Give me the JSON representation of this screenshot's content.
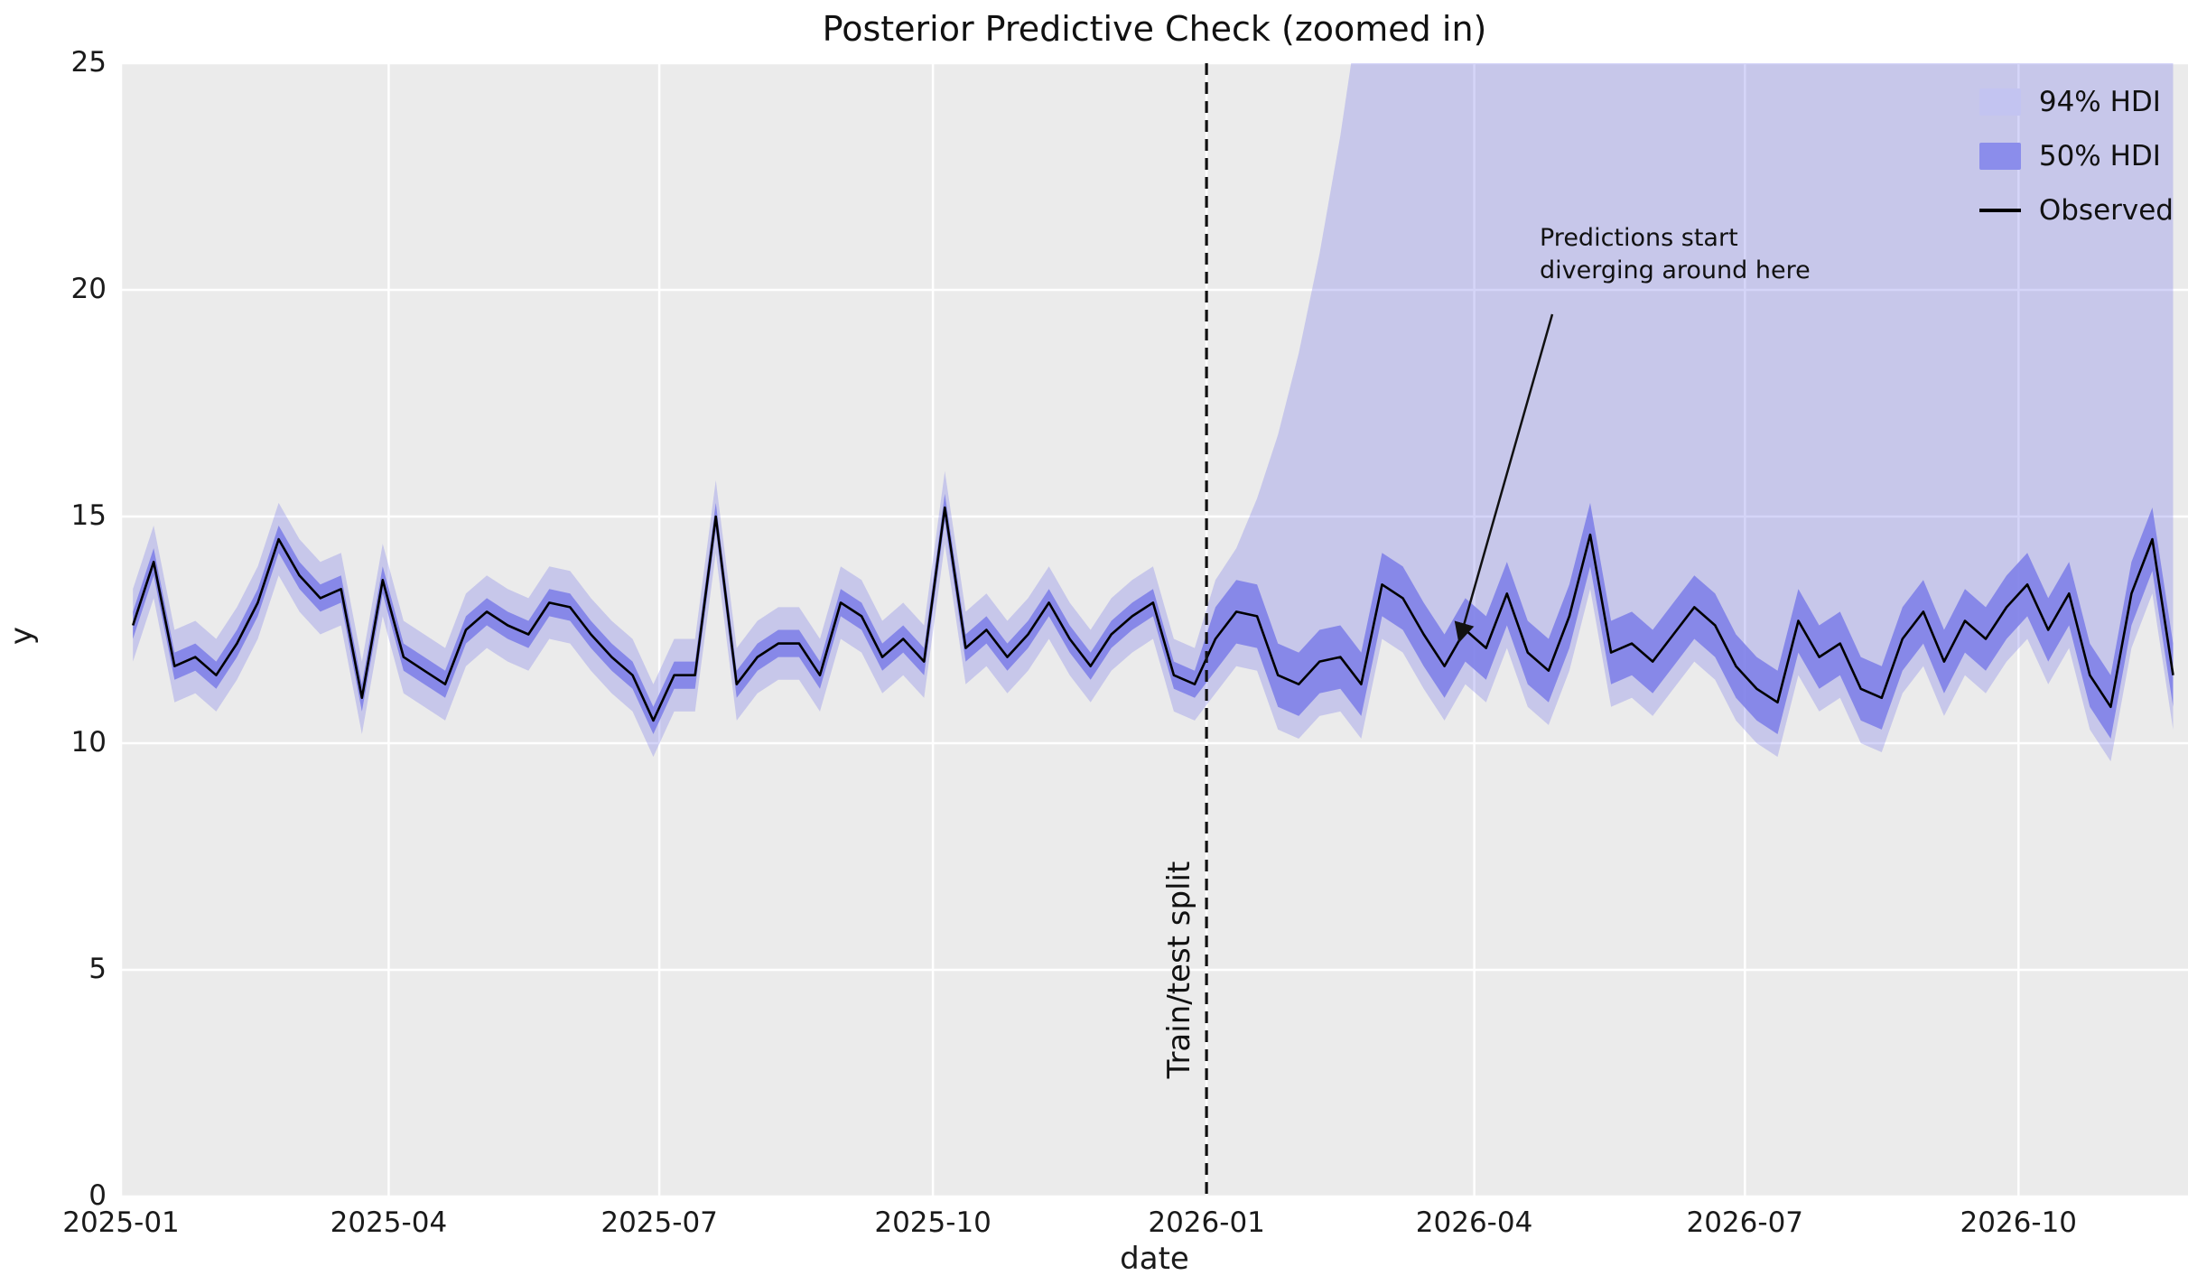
{
  "chart_data": {
    "type": "line",
    "title": "Posterior Predictive Check (zoomed in)",
    "xlabel": "date",
    "ylabel": "y",
    "ylim": [
      0,
      25
    ],
    "x_domain_days": [
      0,
      695
    ],
    "x_start_day": 4,
    "x_step_days": 7,
    "grid": true,
    "split_day": 365,
    "split_label": "Train/test split",
    "annotation": {
      "line1": "Predictions start",
      "line2": "diverging around here"
    },
    "legend_position": "upper right",
    "legend": [
      {
        "label": "94% HDI",
        "swatch": "#c3c4f1",
        "type": "patch"
      },
      {
        "label": "50% HDI",
        "swatch": "#8b8deb",
        "type": "patch"
      },
      {
        "label": "Observed",
        "swatch": "#000000",
        "type": "line"
      }
    ],
    "colors": {
      "band_fill": "#7b7de8",
      "band94_opacity": 0.32,
      "band50_opacity": 0.85,
      "observed": "#000000",
      "plot_bg": "#ebebeb",
      "grid": "#ffffff",
      "text": "#111111"
    },
    "yticks": [
      0,
      5,
      10,
      15,
      20,
      25
    ],
    "xticks": [
      {
        "day": 0,
        "label": "2025-01"
      },
      {
        "day": 90,
        "label": "2025-04"
      },
      {
        "day": 181,
        "label": "2025-07"
      },
      {
        "day": 273,
        "label": "2025-10"
      },
      {
        "day": 365,
        "label": "2026-01"
      },
      {
        "day": 455,
        "label": "2026-04"
      },
      {
        "day": 546,
        "label": "2026-07"
      },
      {
        "day": 638,
        "label": "2026-10"
      }
    ],
    "series": {
      "observed": [
        12.6,
        14.0,
        11.7,
        11.9,
        11.5,
        12.2,
        13.1,
        14.5,
        13.7,
        13.2,
        13.4,
        11.0,
        13.6,
        11.9,
        11.6,
        11.3,
        12.5,
        12.9,
        12.6,
        12.4,
        13.1,
        13.0,
        12.4,
        11.9,
        11.5,
        10.5,
        11.5,
        11.5,
        15.0,
        11.3,
        11.9,
        12.2,
        12.2,
        11.5,
        13.1,
        12.8,
        11.9,
        12.3,
        11.8,
        15.2,
        12.1,
        12.5,
        11.9,
        12.4,
        13.1,
        12.3,
        11.7,
        12.4,
        12.8,
        13.1,
        11.5,
        11.3,
        12.3,
        12.9,
        12.8,
        11.5,
        11.3,
        11.8,
        11.9,
        11.3,
        13.5,
        13.2,
        12.4,
        11.7,
        12.5,
        12.1,
        13.3,
        12.0,
        11.6,
        12.8,
        14.6,
        12.0,
        12.2,
        11.8,
        12.4,
        13.0,
        12.6,
        11.7,
        11.2,
        10.9,
        12.7,
        11.9,
        12.2,
        11.2,
        11.0,
        12.3,
        12.9,
        11.8,
        12.7,
        12.3,
        13.0,
        13.5,
        12.5,
        13.3,
        11.5,
        10.8,
        13.3,
        14.5,
        11.5
      ],
      "hdi94_lower": [
        11.8,
        13.2,
        10.9,
        11.1,
        10.7,
        11.4,
        12.3,
        13.7,
        12.9,
        12.4,
        12.6,
        10.2,
        12.8,
        11.1,
        10.8,
        10.5,
        11.7,
        12.1,
        11.8,
        11.6,
        12.3,
        12.2,
        11.6,
        11.1,
        10.7,
        9.7,
        10.7,
        10.7,
        14.2,
        10.5,
        11.1,
        11.4,
        11.4,
        10.7,
        12.3,
        12.0,
        11.1,
        11.5,
        11.0,
        14.4,
        11.3,
        11.7,
        11.1,
        11.6,
        12.3,
        11.5,
        10.9,
        11.6,
        12.0,
        12.3,
        10.7,
        10.5,
        11.1,
        11.7,
        11.6,
        10.3,
        10.1,
        10.6,
        10.7,
        10.1,
        12.3,
        12.0,
        11.2,
        10.5,
        11.3,
        10.9,
        12.1,
        10.8,
        10.4,
        11.6,
        13.4,
        10.8,
        11.0,
        10.6,
        11.2,
        11.8,
        11.4,
        10.5,
        10.0,
        9.7,
        11.5,
        10.7,
        11.0,
        10.0,
        9.8,
        11.1,
        11.7,
        10.6,
        11.5,
        11.1,
        11.8,
        12.3,
        11.3,
        12.1,
        10.3,
        9.6,
        12.1,
        13.3,
        10.3
      ],
      "hdi94_upper": [
        13.4,
        14.8,
        12.5,
        12.7,
        12.3,
        13.0,
        13.9,
        15.3,
        14.5,
        14.0,
        14.2,
        11.8,
        14.4,
        12.7,
        12.4,
        12.1,
        13.3,
        13.7,
        13.4,
        13.2,
        13.9,
        13.8,
        13.2,
        12.7,
        12.3,
        11.3,
        12.3,
        12.3,
        15.8,
        12.1,
        12.7,
        13.0,
        13.0,
        12.3,
        13.9,
        13.6,
        12.7,
        13.1,
        12.6,
        16.0,
        12.9,
        13.3,
        12.7,
        13.2,
        13.9,
        13.1,
        12.5,
        13.2,
        13.6,
        13.9,
        12.3,
        12.1,
        13.6,
        14.3,
        15.4,
        16.8,
        18.6,
        20.8,
        23.4,
        26.5,
        30,
        34,
        39,
        45,
        52,
        60,
        70,
        80,
        80,
        80,
        80,
        80,
        80,
        80,
        80,
        80,
        80,
        80,
        80,
        80,
        80,
        80,
        80,
        80,
        80,
        80,
        80,
        80,
        80,
        80,
        80,
        80,
        80,
        80,
        80,
        80,
        80,
        80,
        80
      ],
      "hdi50_lower": [
        12.3,
        13.7,
        11.4,
        11.6,
        11.2,
        11.9,
        12.8,
        14.2,
        13.4,
        12.9,
        13.1,
        10.7,
        13.3,
        11.6,
        11.3,
        11.0,
        12.2,
        12.6,
        12.3,
        12.1,
        12.8,
        12.7,
        12.1,
        11.6,
        11.2,
        10.2,
        11.2,
        11.2,
        14.7,
        11.0,
        11.6,
        11.9,
        11.9,
        11.2,
        12.8,
        12.5,
        11.6,
        12.0,
        11.5,
        14.9,
        11.8,
        12.2,
        11.6,
        12.1,
        12.8,
        12.0,
        11.4,
        12.1,
        12.5,
        12.8,
        11.2,
        11.0,
        11.6,
        12.2,
        12.1,
        10.8,
        10.6,
        11.1,
        11.2,
        10.6,
        12.8,
        12.5,
        11.7,
        11.0,
        11.8,
        11.4,
        12.6,
        11.3,
        10.9,
        12.1,
        13.9,
        11.3,
        11.5,
        11.1,
        11.7,
        12.3,
        11.9,
        11.0,
        10.5,
        10.2,
        12.0,
        11.2,
        11.5,
        10.5,
        10.3,
        11.6,
        12.2,
        11.1,
        12.0,
        11.6,
        12.3,
        12.8,
        11.8,
        12.6,
        10.8,
        10.1,
        12.6,
        13.8,
        10.8
      ],
      "hdi50_upper": [
        12.9,
        14.3,
        12.0,
        12.2,
        11.8,
        12.5,
        13.4,
        14.8,
        14.0,
        13.5,
        13.7,
        11.3,
        13.9,
        12.2,
        11.9,
        11.6,
        12.8,
        13.2,
        12.9,
        12.7,
        13.4,
        13.3,
        12.7,
        12.2,
        11.8,
        10.8,
        11.8,
        11.8,
        15.3,
        11.6,
        12.2,
        12.5,
        12.5,
        11.8,
        13.4,
        13.1,
        12.2,
        12.6,
        12.1,
        15.5,
        12.4,
        12.8,
        12.2,
        12.7,
        13.4,
        12.6,
        12.0,
        12.7,
        13.1,
        13.4,
        11.8,
        11.6,
        13.0,
        13.6,
        13.5,
        12.2,
        12.0,
        12.5,
        12.6,
        12.0,
        14.2,
        13.9,
        13.1,
        12.4,
        13.2,
        12.8,
        14.0,
        12.7,
        12.3,
        13.5,
        15.3,
        12.7,
        12.9,
        12.5,
        13.1,
        13.7,
        13.3,
        12.4,
        11.9,
        11.6,
        13.4,
        12.6,
        12.9,
        11.9,
        11.7,
        13.0,
        13.6,
        12.5,
        13.4,
        13.0,
        13.7,
        14.2,
        13.2,
        14.0,
        12.2,
        11.5,
        14.0,
        15.2,
        12.2
      ]
    }
  }
}
